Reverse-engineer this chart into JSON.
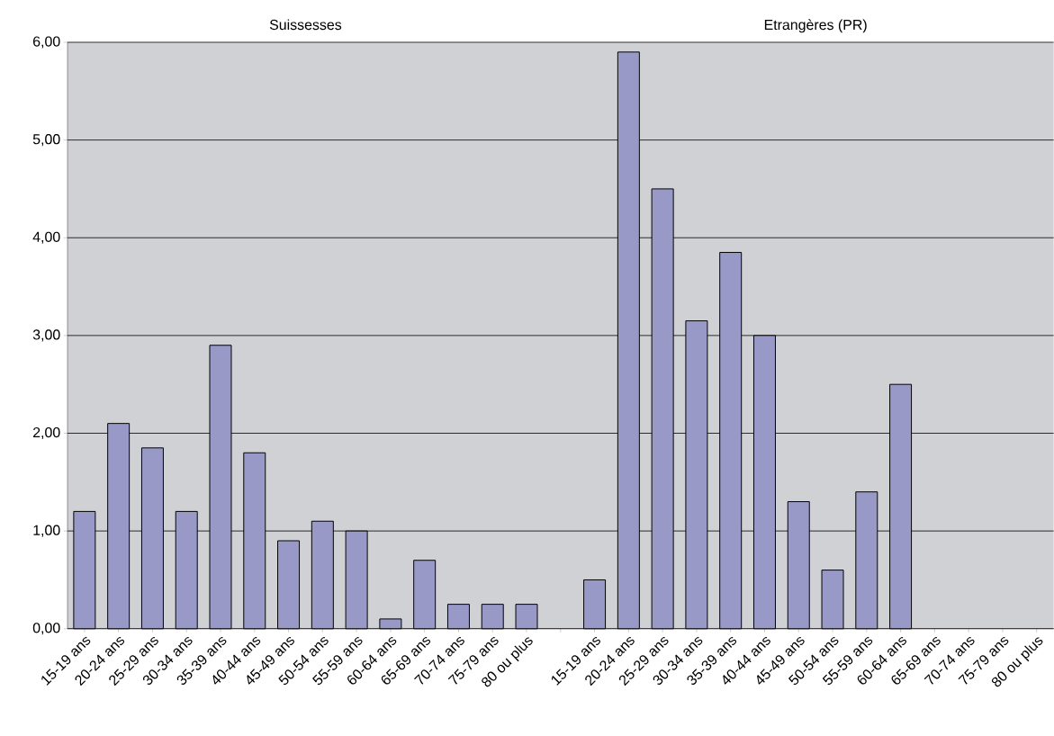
{
  "chart_data": {
    "type": "bar",
    "categories": [
      "15-19 ans",
      "20-24 ans",
      "25-29 ans",
      "30-34 ans",
      "35-39 ans",
      "40-44 ans",
      "45-49 ans",
      "50-54 ans",
      "55-59 ans",
      "60-64 ans",
      "65-69 ans",
      "70-74 ans",
      "75-79 ans",
      "80 ou plus",
      null,
      "15-19 ans",
      "20-24 ans",
      "25-29 ans",
      "30-34 ans",
      "35-39 ans",
      "40-44 ans",
      "45-49 ans",
      "50-54 ans",
      "55-59 ans",
      "60-64 ans",
      "65-69 ans",
      "70-74 ans",
      "75-79 ans",
      "80 ou plus"
    ],
    "values": [
      1.2,
      2.1,
      1.85,
      1.2,
      2.9,
      1.8,
      0.9,
      1.1,
      1.0,
      0.1,
      0.7,
      0.25,
      0.25,
      0.25,
      null,
      0.5,
      5.9,
      4.5,
      3.15,
      3.85,
      3.0,
      1.3,
      0.6,
      1.4,
      2.5,
      null,
      null,
      null,
      null
    ],
    "color": "#9999c8",
    "ylim": [
      0,
      6
    ],
    "yticks": [
      {
        "value": 0,
        "label": "0,00"
      },
      {
        "value": 1,
        "label": "1,00"
      },
      {
        "value": 2,
        "label": "2,00"
      },
      {
        "value": 3,
        "label": "3,00"
      },
      {
        "value": 4,
        "label": "4,00"
      },
      {
        "value": 5,
        "label": "5,00"
      },
      {
        "value": 6,
        "label": "6,00"
      }
    ],
    "grid": "y",
    "annotations": [
      "Suissesses",
      "Etrangères (PR)"
    ]
  }
}
